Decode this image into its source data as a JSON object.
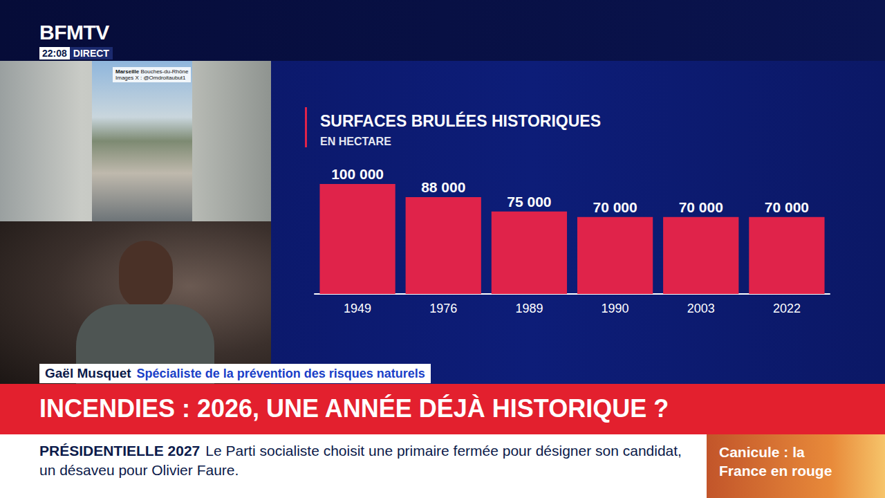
{
  "chart_data": {
    "type": "bar",
    "title": "SURFACES BRULÉES HISTORIQUES",
    "subtitle": "EN HECTARE",
    "categories": [
      "1949",
      "1976",
      "1989",
      "1990",
      "2003",
      "2022"
    ],
    "values": [
      100000,
      88000,
      75000,
      70000,
      70000,
      70000
    ],
    "value_labels": [
      "100 000",
      "88 000",
      "75 000",
      "70 000",
      "70 000",
      "70 000"
    ],
    "color": "#e0234a",
    "ylim": [
      0,
      100000
    ],
    "data_labels": true,
    "tick_labels": "x",
    "grid": false
  },
  "screen": {
    "channel": "BFMTV",
    "time": "22:08",
    "live": "DIRECT",
    "photo_caption": {
      "place": "Marseille",
      "region": "Bouches-du-Rhône",
      "credit": "Images X : @Omdroitaubut1"
    },
    "guest": {
      "name": "Gaël Musquet",
      "role": "Spécialiste de la prévention des risques naturels"
    },
    "headline": "INCENDIES : 2026, UNE ANNÉE DÉJÀ HISTORIQUE ?",
    "ticker": {
      "title": "PRÉSIDENTIELLE 2027",
      "text": "Le Parti socialiste choisit une primaire fermée pour désigner son candidat, un désaveu pour Olivier Faure."
    },
    "side_panel": [
      "Canicule : la",
      "France en rouge"
    ]
  }
}
